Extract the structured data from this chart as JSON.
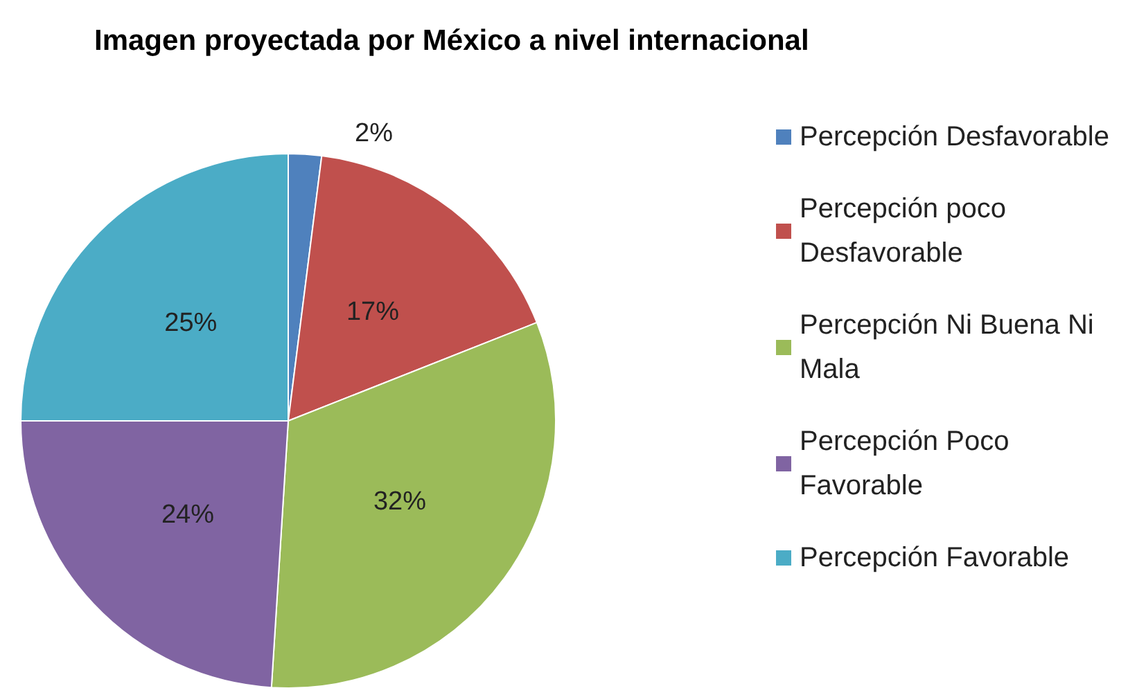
{
  "chart_data": {
    "type": "pie",
    "title": "Imagen proyectada por México a nivel internacional",
    "categories": [
      "Percepción Desfavorable",
      "Percepción poco Desfavorable",
      "Percepción Ni Buena Ni Mala",
      "Percepción Poco Favorable",
      "Percepción Favorable"
    ],
    "values": [
      2,
      17,
      32,
      24,
      25
    ],
    "colors": [
      "#4f81bd",
      "#c0504d",
      "#9bbb59",
      "#8064a2",
      "#4bacc6"
    ],
    "value_labels": [
      "2%",
      "17%",
      "32%",
      "24%",
      "25%"
    ],
    "legend": "right"
  }
}
